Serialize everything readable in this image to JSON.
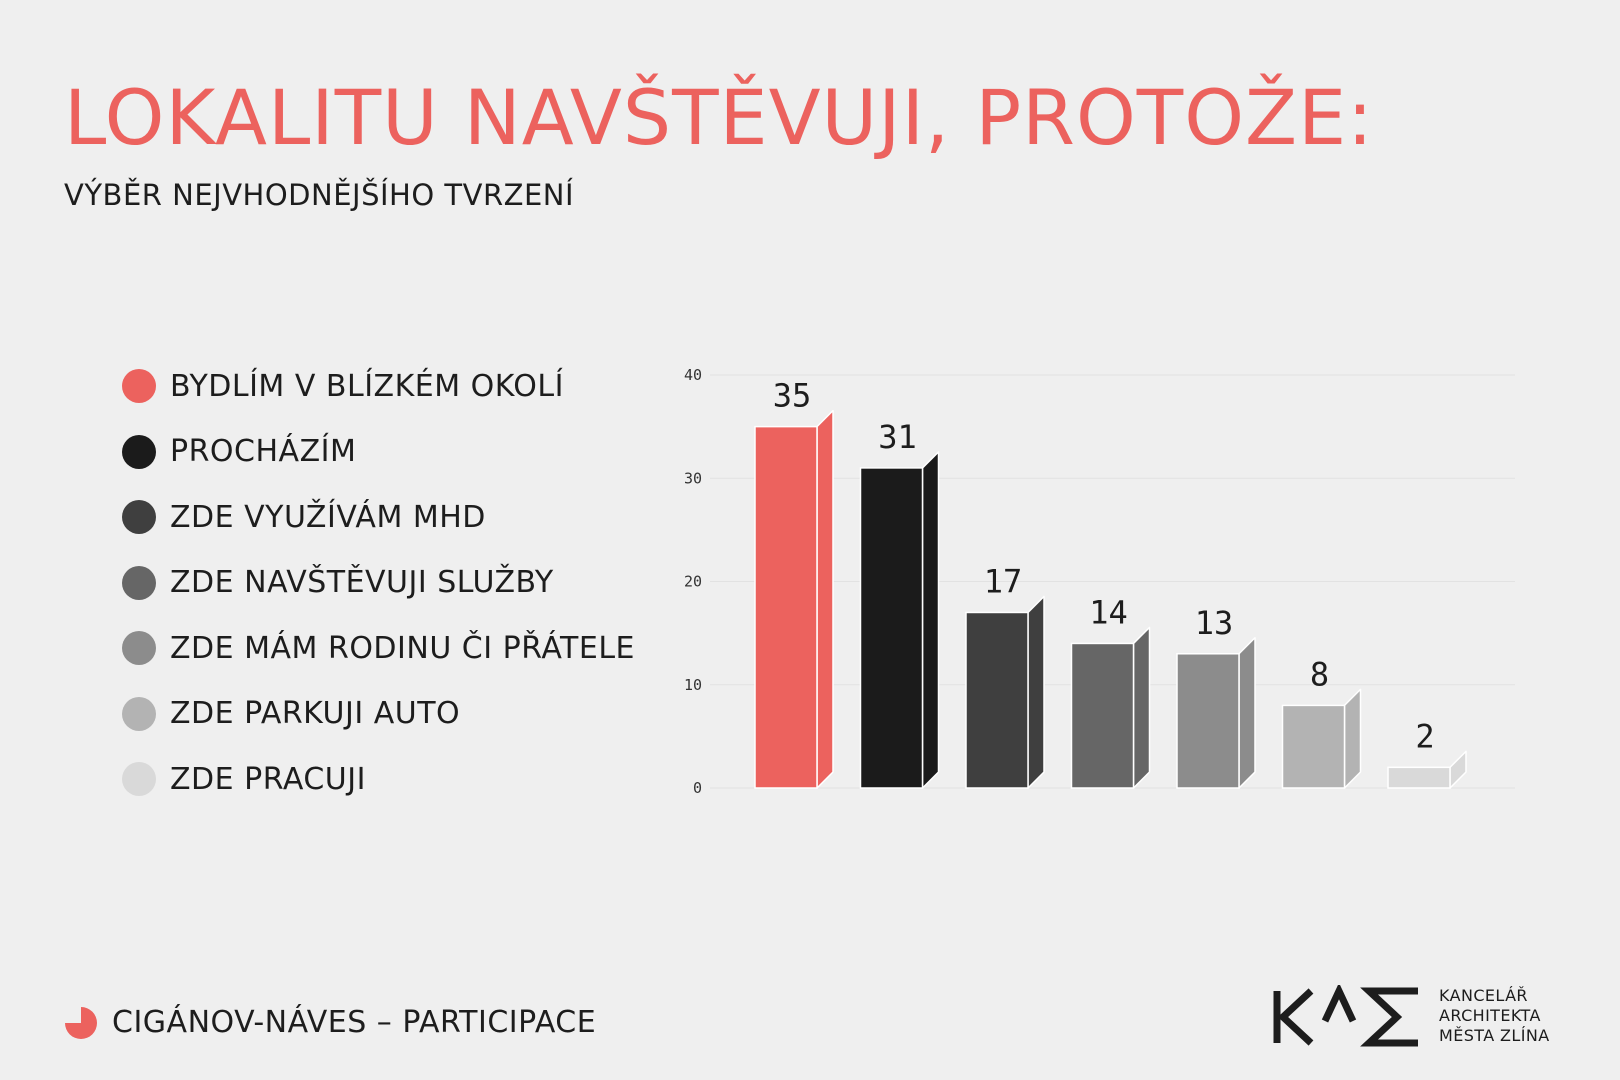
{
  "title": "LOKALITU NAVŠTĚVUJI, PROTOŽE:",
  "subtitle": "VÝBĚR NEJVHODNĚJŠÍHO TVRZENÍ",
  "colors": {
    "accent": "#ec625e",
    "text": "#1d1d1d",
    "background": "#efefef"
  },
  "legend": [
    {
      "label": "BYDLÍM V BLÍZKÉM OKOLÍ",
      "color": "#ec625e"
    },
    {
      "label": "PROCHÁZÍM",
      "color": "#1b1b1b"
    },
    {
      "label": "ZDE VYUŽÍVÁM MHD",
      "color": "#3f3f3f"
    },
    {
      "label": "ZDE NAVŠTĚVUJI SLUŽBY",
      "color": "#666666"
    },
    {
      "label": "ZDE MÁM RODINU ČI PŘÁTELE",
      "color": "#8c8c8c"
    },
    {
      "label": "ZDE PARKUJI AUTO",
      "color": "#b3b3b3"
    },
    {
      "label": "ZDE PRACUJI",
      "color": "#d9d9d9"
    }
  ],
  "chart_data": {
    "type": "bar",
    "categories": [
      "BYDLÍM V BLÍZKÉM OKOLÍ",
      "PROCHÁZÍM",
      "ZDE VYUŽÍVÁM MHD",
      "ZDE NAVŠTĚVUJI SLUŽBY",
      "ZDE MÁM RODINU ČI PŘÁTELE",
      "ZDE PARKUJI AUTO",
      "ZDE PRACUJI"
    ],
    "values": [
      35,
      31,
      17,
      14,
      13,
      8,
      2
    ],
    "colors": [
      "#ec625e",
      "#1b1b1b",
      "#3f3f3f",
      "#666666",
      "#8c8c8c",
      "#b3b3b3",
      "#d9d9d9"
    ],
    "yticks": [
      0,
      10,
      20,
      30,
      40
    ],
    "ylim": [
      0,
      40
    ],
    "grid": true,
    "bar_style": "3d",
    "legend_position": "left"
  },
  "footer": {
    "icon": "pie-chart-icon",
    "label": "CIGÁNOV-NÁVES – PARTICIPACE"
  },
  "logo": {
    "lines": [
      "KANCELÁŘ",
      "ARCHITEKTA",
      "MĚSTA ZLÍNA"
    ]
  }
}
